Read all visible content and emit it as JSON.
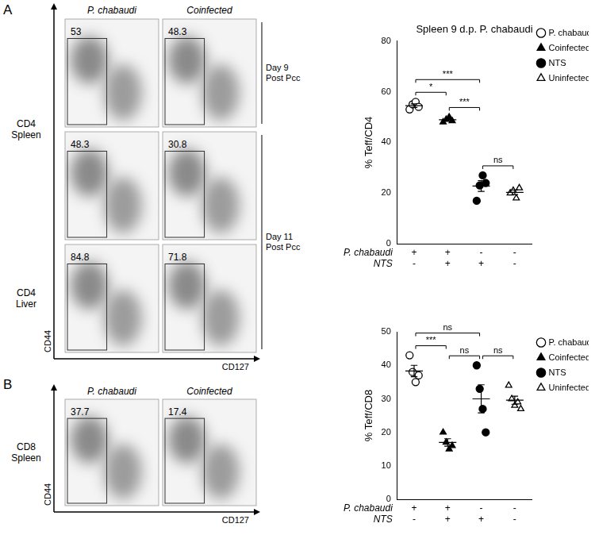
{
  "flow_A": {
    "letter": "A",
    "columns": [
      "P. chabaudi",
      "Coinfected"
    ],
    "gates": [
      [
        53,
        48.3
      ],
      [
        48.3,
        30.8
      ],
      [
        84.8,
        71.8
      ]
    ],
    "row_groups": [
      {
        "label": [
          "CD4",
          "Spleen"
        ],
        "rows": [
          0,
          1
        ]
      },
      {
        "label": [
          "CD4",
          "Liver"
        ],
        "rows": [
          2
        ]
      }
    ],
    "day_groups": [
      {
        "label": [
          "Day 9",
          "Post Pcc"
        ],
        "rows": [
          0
        ]
      },
      {
        "label": [
          "Day 11",
          "Post Pcc"
        ],
        "rows": [
          1,
          2
        ]
      }
    ],
    "x_label": "CD127",
    "y_label": "CD44"
  },
  "flow_B": {
    "letter": "B",
    "columns": [
      "P. chabaudi",
      "Coinfected"
    ],
    "gates": [
      [
        37.7,
        17.4
      ]
    ],
    "row_groups": [
      {
        "label": [
          "CD8",
          "Spleen"
        ],
        "rows": [
          0
        ]
      }
    ],
    "x_label": "CD127",
    "y_label": "CD44"
  },
  "chart_data": [
    {
      "type": "scatter",
      "title": "Spleen 9 d.p. P. chabaudi",
      "y_label": "% Teff/CD4",
      "categories": [
        [
          "+",
          "-"
        ],
        [
          "+",
          "+"
        ],
        [
          "-",
          "+"
        ],
        [
          "-",
          "-"
        ]
      ],
      "category_rows": [
        "P. chabaudi",
        "NTS"
      ],
      "ylim": [
        0,
        80
      ],
      "yticks": [
        0,
        20,
        40,
        60,
        80
      ],
      "grid": false,
      "legend": "right",
      "series": [
        {
          "name": "P. chabaudi",
          "color": "#000000",
          "marker": "open-circle",
          "values": [
            [
              53,
              55,
              56,
              54
            ],
            null,
            null,
            null
          ],
          "mean": 54.5,
          "sem": 0.7
        },
        {
          "name": "Coinfected",
          "color": "#000000",
          "marker": "filled-triangle",
          "values": [
            null,
            [
              48,
              49,
              50,
              48.5
            ],
            null,
            null
          ],
          "mean": 48.9,
          "sem": 0.4
        },
        {
          "name": "NTS",
          "color": "#000000",
          "marker": "filled-circle",
          "values": [
            null,
            null,
            [
              17,
              23,
              27,
              24
            ],
            null
          ],
          "mean": 22.8,
          "sem": 2.1
        },
        {
          "name": "Uninfected",
          "color": "#000000",
          "marker": "open-triangle",
          "values": [
            null,
            null,
            null,
            [
              20,
              21,
              18,
              22
            ]
          ],
          "mean": 20.3,
          "sem": 0.9
        }
      ],
      "comparisons": [
        {
          "between": [
            0,
            1
          ],
          "label": "*"
        },
        {
          "between": [
            1,
            2
          ],
          "label": "***"
        },
        {
          "between": [
            2,
            3
          ],
          "label": "ns"
        },
        {
          "between": [
            0,
            2
          ],
          "label": "***"
        }
      ]
    },
    {
      "type": "scatter",
      "y_label": "% Teff/CD8",
      "categories": [
        [
          "+",
          "-"
        ],
        [
          "+",
          "+"
        ],
        [
          "-",
          "+"
        ],
        [
          "-",
          "-"
        ]
      ],
      "category_rows": [
        "P. chabaudi",
        "NTS"
      ],
      "ylim": [
        0,
        50
      ],
      "yticks": [
        0,
        10,
        20,
        30,
        40,
        50
      ],
      "grid": false,
      "legend": "right",
      "series": [
        {
          "name": "P. chabaudi",
          "color": "#000000",
          "marker": "open-circle",
          "values": [
            [
              43,
              38,
              35,
              37
            ],
            null,
            null,
            null
          ],
          "mean": 38.3,
          "sem": 1.7
        },
        {
          "name": "Coinfected",
          "color": "#000000",
          "marker": "filled-triangle",
          "values": [
            null,
            [
              20,
              17,
              15,
              16
            ],
            null,
            null
          ],
          "mean": 17,
          "sem": 1.1
        },
        {
          "name": "NTS",
          "color": "#000000",
          "marker": "filled-circle",
          "values": [
            null,
            null,
            [
              40,
              33,
              27,
              20
            ],
            null
          ],
          "mean": 30,
          "sem": 4.2
        },
        {
          "name": "Uninfected",
          "color": "#000000",
          "marker": "open-triangle",
          "values": [
            null,
            null,
            null,
            [
              34,
              30,
              28,
              29,
              27
            ]
          ],
          "mean": 29.6,
          "sem": 1.2
        }
      ],
      "comparisons": [
        {
          "between": [
            0,
            1
          ],
          "label": "***"
        },
        {
          "between": [
            1,
            2
          ],
          "label": "ns"
        },
        {
          "between": [
            2,
            3
          ],
          "label": "ns"
        },
        {
          "between": [
            0,
            2
          ],
          "label": "ns"
        }
      ]
    }
  ]
}
